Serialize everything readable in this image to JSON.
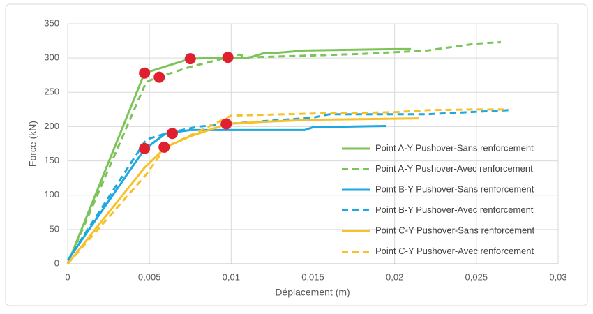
{
  "chart_data": {
    "type": "line",
    "ylabel": "Force (kN)",
    "xlabel": "Déplacement (m)",
    "xlim": [
      0,
      0.03
    ],
    "ylim": [
      0,
      350
    ],
    "xticks": [
      0,
      {
        "value": 0.005,
        "label": "0,005"
      },
      {
        "value": 0.01,
        "label": "0,01"
      },
      {
        "value": 0.015,
        "label": "0,015"
      },
      {
        "value": 0.02,
        "label": "0,02"
      },
      {
        "value": 0.025,
        "label": "0,025"
      },
      {
        "value": 0.03,
        "label": "0,03"
      }
    ],
    "yticks": [
      0,
      50,
      100,
      150,
      200,
      250,
      300,
      350
    ],
    "grid": true,
    "legend": "right",
    "series": [
      {
        "name": "Point A-Y Pushover-Sans renforcement",
        "color": "#7cc35a",
        "dashed": false,
        "x": [
          0,
          0.0047,
          0.0075,
          0.0098,
          0.011,
          0.012,
          0.0125,
          0.0145,
          0.02,
          0.021
        ],
        "values": [
          0,
          278,
          299,
          301,
          300,
          307,
          307,
          311,
          313,
          313
        ]
      },
      {
        "name": "Point A-Y Pushover-Avec renforcement",
        "color": "#7cc35a",
        "dashed": true,
        "x": [
          0,
          0.0048,
          0.0055,
          0.0075,
          0.0098,
          0.0105,
          0.011,
          0.014,
          0.018,
          0.022,
          0.025,
          0.0265
        ],
        "values": [
          0,
          265,
          272,
          287,
          301,
          305,
          301,
          303,
          306,
          311,
          321,
          323
        ]
      },
      {
        "name": "Point B-Y Pushover-Sans renforcement",
        "color": "#1fa8e0",
        "dashed": false,
        "x": [
          0,
          0.0047,
          0.006,
          0.0075,
          0.0098,
          0.0145,
          0.015,
          0.0195
        ],
        "values": [
          5,
          167,
          190,
          195,
          195,
          195,
          199,
          201
        ]
      },
      {
        "name": "Point B-Y Pushover-Avec renforcement",
        "color": "#1fa8e0",
        "dashed": true,
        "x": [
          0,
          0.0048,
          0.006,
          0.008,
          0.0098,
          0.012,
          0.015,
          0.016,
          0.022,
          0.027
        ],
        "values": [
          5,
          181,
          190,
          200,
          204,
          208,
          213,
          218,
          218,
          224
        ]
      },
      {
        "name": "Point C-Y Pushover-Sans renforcement",
        "color": "#f7c12a",
        "dashed": false,
        "x": [
          0,
          0.0047,
          0.006,
          0.0075,
          0.0098,
          0.012,
          0.015,
          0.0215
        ],
        "values": [
          0,
          140,
          170,
          186,
          204,
          207,
          210,
          212
        ]
      },
      {
        "name": "Point C-Y Pushover-Avec renforcement",
        "color": "#f7c12a",
        "dashed": true,
        "x": [
          0,
          0.0048,
          0.006,
          0.0095,
          0.01,
          0.015,
          0.02,
          0.022,
          0.025,
          0.027
        ],
        "values": [
          0,
          130,
          170,
          210,
          216,
          219,
          221,
          224,
          225,
          225
        ]
      }
    ],
    "markers": {
      "color": "#e0202f",
      "x": [
        0.0047,
        0.0056,
        0.0075,
        0.0098,
        0.0047,
        0.0059,
        0.0064,
        0.0097
      ],
      "values": [
        278,
        272,
        299,
        301,
        168,
        170,
        190,
        204
      ]
    }
  }
}
